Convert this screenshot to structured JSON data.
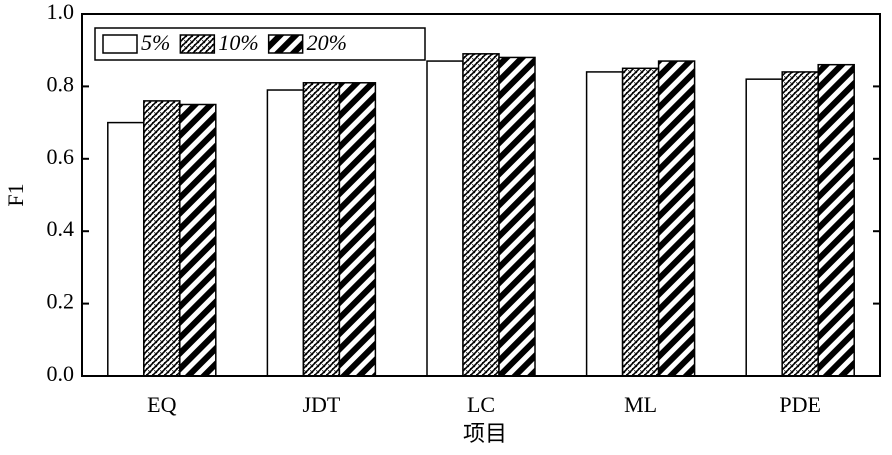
{
  "chart_data": {
    "type": "bar",
    "y_label": "F1",
    "x_label": "项目",
    "categories": [
      "EQ",
      "JDT",
      "LC",
      "ML",
      "PDE"
    ],
    "series": [
      {
        "name": "5%",
        "color": "#ffffff",
        "pattern": "none",
        "values": [
          0.7,
          0.79,
          0.87,
          0.84,
          0.82
        ]
      },
      {
        "name": "10%",
        "color": "#000000",
        "pattern": "dots",
        "values": [
          0.76,
          0.81,
          0.89,
          0.85,
          0.84
        ]
      },
      {
        "name": "20%",
        "color": "#000000",
        "pattern": "stripes",
        "values": [
          0.75,
          0.81,
          0.88,
          0.87,
          0.86
        ]
      }
    ],
    "ylim": [
      0,
      1
    ],
    "yticks": [
      {
        "value": 0,
        "label": "0.0"
      },
      {
        "value": 0.2,
        "label": "0.2"
      },
      {
        "value": 0.4,
        "label": "0.4"
      },
      {
        "value": 0.6,
        "label": "0.6"
      },
      {
        "value": 0.8,
        "label": "0.8"
      },
      {
        "value": 1,
        "label": "1.0"
      }
    ],
    "legend": "upper left"
  }
}
